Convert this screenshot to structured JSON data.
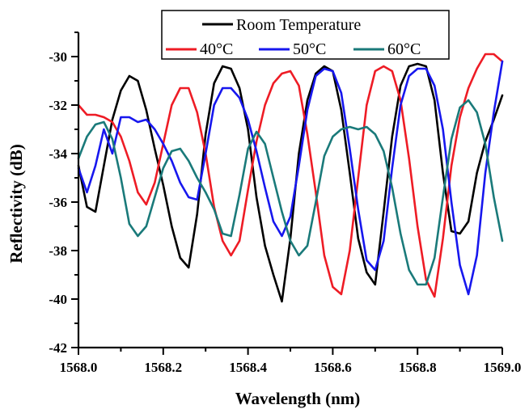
{
  "chart_data": {
    "type": "line",
    "xlabel": "Wavelength (nm)",
    "ylabel": "Reflectivity (dB)",
    "xlim": [
      1568.0,
      1569.0
    ],
    "ylim": [
      -42,
      -29
    ],
    "xticks": [
      "1568.0",
      "1568.2",
      "1568.4",
      "1568.6",
      "1568.8",
      "1569.0"
    ],
    "yticks": [
      "-30",
      "-32",
      "-34",
      "-36",
      "-38",
      "-40",
      "-42"
    ],
    "grid": false,
    "legend_position": "top",
    "series": [
      {
        "name": "Room Temperature",
        "color": "#000000",
        "x": [
          1568.0,
          1568.02,
          1568.04,
          1568.06,
          1568.08,
          1568.1,
          1568.12,
          1568.14,
          1568.16,
          1568.18,
          1568.2,
          1568.22,
          1568.24,
          1568.26,
          1568.28,
          1568.3,
          1568.32,
          1568.34,
          1568.36,
          1568.38,
          1568.4,
          1568.42,
          1568.44,
          1568.46,
          1568.48,
          1568.5,
          1568.52,
          1568.54,
          1568.56,
          1568.58,
          1568.6,
          1568.62,
          1568.64,
          1568.66,
          1568.68,
          1568.7,
          1568.72,
          1568.74,
          1568.76,
          1568.78,
          1568.8,
          1568.82,
          1568.84,
          1568.86,
          1568.88,
          1568.9,
          1568.92,
          1568.94,
          1568.96,
          1568.98,
          1569.0
        ],
        "y": [
          -34.5,
          -36.2,
          -36.4,
          -34.5,
          -32.6,
          -31.4,
          -30.8,
          -31.0,
          -32.2,
          -33.8,
          -35.3,
          -37.0,
          -38.3,
          -38.7,
          -36.5,
          -33.2,
          -31.1,
          -30.4,
          -30.5,
          -31.3,
          -33.0,
          -35.8,
          -37.8,
          -39.0,
          -40.1,
          -37.5,
          -34.0,
          -31.8,
          -30.7,
          -30.4,
          -30.6,
          -32.2,
          -34.8,
          -37.5,
          -38.9,
          -39.4,
          -36.4,
          -33.3,
          -31.2,
          -30.4,
          -30.3,
          -30.4,
          -31.8,
          -34.8,
          -37.2,
          -37.3,
          -36.8,
          -34.8,
          -33.5,
          -32.6,
          -31.6
        ]
      },
      {
        "name": "40°C",
        "color": "#ee1c25",
        "x": [
          1568.0,
          1568.02,
          1568.04,
          1568.06,
          1568.08,
          1568.1,
          1568.12,
          1568.14,
          1568.16,
          1568.18,
          1568.2,
          1568.22,
          1568.24,
          1568.26,
          1568.28,
          1568.3,
          1568.32,
          1568.34,
          1568.36,
          1568.38,
          1568.4,
          1568.42,
          1568.44,
          1568.46,
          1568.48,
          1568.5,
          1568.52,
          1568.54,
          1568.56,
          1568.58,
          1568.6,
          1568.62,
          1568.64,
          1568.66,
          1568.68,
          1568.7,
          1568.72,
          1568.74,
          1568.76,
          1568.78,
          1568.8,
          1568.82,
          1568.84,
          1568.86,
          1568.88,
          1568.9,
          1568.92,
          1568.94,
          1568.96,
          1568.98,
          1569.0
        ],
        "y": [
          -32.0,
          -32.4,
          -32.4,
          -32.5,
          -32.7,
          -33.3,
          -34.3,
          -35.6,
          -36.1,
          -35.2,
          -33.6,
          -32.0,
          -31.3,
          -31.3,
          -32.3,
          -34.0,
          -36.2,
          -37.6,
          -38.2,
          -37.6,
          -35.5,
          -33.5,
          -32.0,
          -31.1,
          -30.7,
          -30.6,
          -31.2,
          -33.2,
          -35.6,
          -38.2,
          -39.5,
          -39.8,
          -38.0,
          -35.0,
          -32.0,
          -30.6,
          -30.4,
          -30.6,
          -31.8,
          -34.2,
          -37.0,
          -39.2,
          -39.9,
          -37.5,
          -34.5,
          -32.5,
          -31.3,
          -30.5,
          -29.9,
          -29.9,
          -30.2
        ]
      },
      {
        "name": "50°C",
        "color": "#1717ee",
        "x": [
          1568.0,
          1568.02,
          1568.04,
          1568.06,
          1568.08,
          1568.1,
          1568.12,
          1568.14,
          1568.16,
          1568.18,
          1568.2,
          1568.22,
          1568.24,
          1568.26,
          1568.28,
          1568.3,
          1568.32,
          1568.34,
          1568.36,
          1568.38,
          1568.4,
          1568.42,
          1568.44,
          1568.46,
          1568.48,
          1568.5,
          1568.52,
          1568.54,
          1568.56,
          1568.58,
          1568.6,
          1568.62,
          1568.64,
          1568.66,
          1568.68,
          1568.7,
          1568.72,
          1568.74,
          1568.76,
          1568.78,
          1568.8,
          1568.82,
          1568.84,
          1568.86,
          1568.88,
          1568.9,
          1568.92,
          1568.94,
          1568.96,
          1568.98,
          1569.0
        ],
        "y": [
          -34.6,
          -35.6,
          -34.5,
          -33.0,
          -34.0,
          -32.5,
          -32.5,
          -32.7,
          -32.6,
          -33.0,
          -33.6,
          -34.3,
          -35.2,
          -35.8,
          -35.9,
          -34.0,
          -32.0,
          -31.3,
          -31.3,
          -31.7,
          -32.6,
          -33.9,
          -35.4,
          -36.8,
          -37.4,
          -36.6,
          -34.5,
          -32.2,
          -30.8,
          -30.5,
          -30.6,
          -31.5,
          -33.8,
          -36.3,
          -38.4,
          -38.8,
          -37.6,
          -34.6,
          -32.0,
          -30.8,
          -30.5,
          -30.5,
          -31.2,
          -33.0,
          -36.0,
          -38.6,
          -39.8,
          -38.2,
          -34.8,
          -32.3,
          -30.2
        ]
      },
      {
        "name": "60°C",
        "color": "#1a7a7a",
        "x": [
          1568.0,
          1568.02,
          1568.04,
          1568.06,
          1568.08,
          1568.1,
          1568.12,
          1568.14,
          1568.16,
          1568.18,
          1568.2,
          1568.22,
          1568.24,
          1568.26,
          1568.28,
          1568.3,
          1568.32,
          1568.34,
          1568.36,
          1568.38,
          1568.4,
          1568.42,
          1568.44,
          1568.46,
          1568.48,
          1568.5,
          1568.52,
          1568.54,
          1568.56,
          1568.58,
          1568.6,
          1568.62,
          1568.64,
          1568.66,
          1568.68,
          1568.7,
          1568.72,
          1568.74,
          1568.76,
          1568.78,
          1568.8,
          1568.82,
          1568.84,
          1568.86,
          1568.88,
          1568.9,
          1568.92,
          1568.94,
          1568.96,
          1568.98,
          1569.0
        ],
        "y": [
          -34.2,
          -33.3,
          -32.8,
          -32.7,
          -33.4,
          -35.0,
          -36.9,
          -37.4,
          -37.0,
          -35.8,
          -34.6,
          -33.9,
          -33.8,
          -34.3,
          -35.0,
          -35.6,
          -36.3,
          -37.3,
          -37.4,
          -35.7,
          -33.8,
          -33.1,
          -33.6,
          -35.0,
          -36.4,
          -37.6,
          -38.2,
          -37.8,
          -36.0,
          -34.1,
          -33.3,
          -33.0,
          -32.9,
          -33.0,
          -32.9,
          -33.2,
          -33.9,
          -35.4,
          -37.3,
          -38.8,
          -39.4,
          -39.4,
          -38.3,
          -35.8,
          -33.4,
          -32.1,
          -31.8,
          -32.3,
          -33.6,
          -35.8,
          -37.6
        ]
      }
    ]
  }
}
